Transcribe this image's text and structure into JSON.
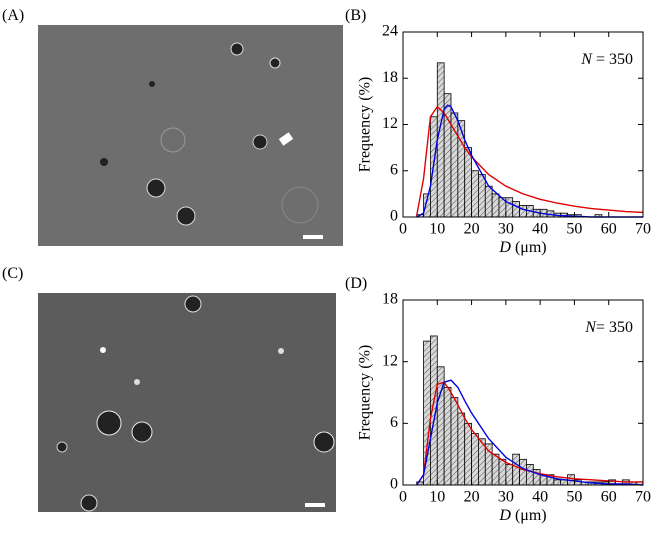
{
  "image_panels": [
    {
      "label": "(A)"
    },
    {
      "label": "(C)"
    }
  ],
  "chart_data": [
    {
      "type": "histogram",
      "panel_label": "(B)",
      "ylabel": "Frequency (%)",
      "xlabel_var": "D",
      "xlabel_unit": "(μm)",
      "annotation_var": "N",
      "annotation_text": " = 350",
      "bins": [
        4,
        6,
        8,
        10,
        12,
        14,
        16,
        18,
        20,
        22,
        24,
        26,
        28,
        30,
        32,
        34,
        36,
        38,
        40,
        42,
        44,
        46,
        48,
        50,
        52,
        54,
        56,
        58,
        60,
        62,
        64,
        66,
        68,
        70
      ],
      "values": [
        0.3,
        3,
        13,
        20,
        16,
        13.5,
        12.5,
        9,
        6,
        5.5,
        4,
        3,
        2.5,
        2.5,
        2,
        1.5,
        1.5,
        1,
        1,
        0.8,
        0.5,
        0.5,
        0.3,
        0.3,
        0,
        0,
        0.3,
        0,
        0,
        0,
        0,
        0,
        0
      ],
      "color": "#c8c8c8",
      "xlim": [
        0,
        70
      ],
      "ylim": [
        0,
        24
      ],
      "xticks": [
        0,
        10,
        20,
        30,
        40,
        50,
        60,
        70
      ],
      "yticks": [
        0,
        6,
        12,
        18,
        24
      ],
      "fits": [
        {
          "color": "#e00000",
          "x": [
            4,
            6,
            8,
            10,
            12,
            14,
            16,
            18,
            20,
            25,
            30,
            35,
            40,
            45,
            50,
            55,
            60,
            65,
            70
          ],
          "values": [
            0.2,
            5,
            13,
            14.3,
            13.5,
            12,
            10.5,
            9,
            7.8,
            5.5,
            4,
            3,
            2.3,
            1.8,
            1.4,
            1.1,
            0.9,
            0.7,
            0.6
          ]
        },
        {
          "color": "#0000e0",
          "x": [
            4,
            6,
            8,
            10,
            12,
            13,
            14,
            16,
            18,
            20,
            25,
            30,
            35,
            40,
            45,
            50,
            55,
            60,
            65,
            70
          ],
          "values": [
            0,
            0.5,
            4,
            10,
            14,
            14.5,
            14.3,
            12.5,
            10,
            8,
            4,
            2,
            1,
            0.5,
            0.2,
            0.1,
            0,
            0,
            0,
            0
          ]
        }
      ]
    },
    {
      "type": "histogram",
      "panel_label": "(D)",
      "ylabel": "Frequency (%)",
      "xlabel_var": "D",
      "xlabel_unit": "(μm)",
      "annotation_var": "N",
      "annotation_text": "= 350",
      "bins": [
        4,
        6,
        8,
        10,
        12,
        14,
        16,
        18,
        20,
        22,
        24,
        26,
        28,
        30,
        32,
        34,
        36,
        38,
        40,
        42,
        44,
        46,
        48,
        50,
        52,
        54,
        56,
        58,
        60,
        62,
        64,
        66,
        68,
        70
      ],
      "values": [
        0.3,
        14,
        14.5,
        11.5,
        9.5,
        8.5,
        7,
        6,
        5,
        4.5,
        4,
        3,
        2.5,
        2,
        3,
        2.5,
        2,
        1.5,
        1,
        1,
        0.5,
        0.5,
        1,
        0.5,
        0.3,
        0.3,
        0.3,
        0.3,
        0.5,
        0,
        0.5,
        0.3,
        0.3
      ],
      "color": "#c8c8c8",
      "xlim": [
        0,
        70
      ],
      "ylim": [
        0,
        18
      ],
      "xticks": [
        0,
        10,
        20,
        30,
        40,
        50,
        60,
        70
      ],
      "yticks": [
        0,
        6,
        12,
        18
      ],
      "fits": [
        {
          "color": "#e00000",
          "x": [
            4,
            6,
            8,
            10,
            12,
            14,
            16,
            18,
            20,
            25,
            30,
            35,
            40,
            45,
            50,
            55,
            60,
            65,
            70
          ],
          "values": [
            0,
            1,
            6.5,
            9.8,
            10,
            9,
            7.8,
            6.5,
            5.4,
            3.3,
            2.2,
            1.5,
            1.1,
            0.8,
            0.6,
            0.5,
            0.4,
            0.3,
            0.3
          ]
        },
        {
          "color": "#0000e0",
          "x": [
            4,
            6,
            8,
            10,
            12,
            14,
            16,
            18,
            20,
            25,
            30,
            35,
            40,
            45,
            50,
            55,
            60,
            65,
            70
          ],
          "values": [
            0,
            1,
            4.5,
            8,
            10,
            10.2,
            9.5,
            8.2,
            7,
            4.5,
            2.7,
            1.6,
            1,
            0.6,
            0.4,
            0.2,
            0.1,
            0.1,
            0
          ]
        }
      ]
    }
  ]
}
